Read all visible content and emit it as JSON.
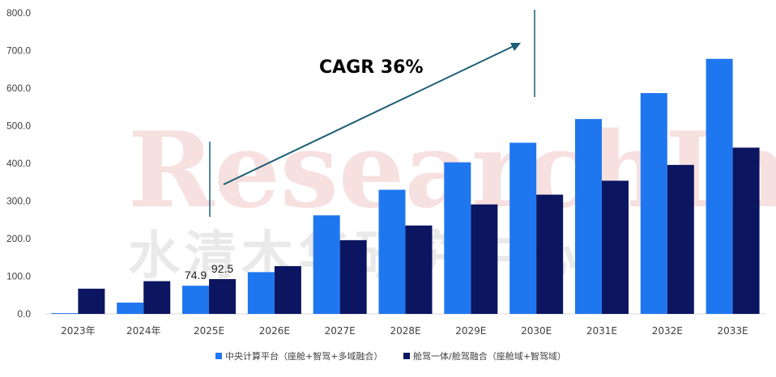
{
  "watermark": {
    "en": "ResearchInChina",
    "cn": "水清木华研究中心"
  },
  "colors": {
    "series1": "#1F77F0",
    "series2": "#0B1560",
    "arrow": "#1B5E75",
    "grid": "#f0f0f0"
  },
  "annotation": {
    "cagr_label": "CAGR 36%"
  },
  "chart_data": {
    "type": "bar",
    "categories": [
      "2023年",
      "2024年",
      "2025E",
      "2026E",
      "2027E",
      "2028E",
      "2029E",
      "2030E",
      "2031E",
      "2032E",
      "2033E"
    ],
    "series": [
      {
        "name": "中央计算平台（座舱+智驾+多域融合）",
        "values": [
          2,
          30,
          74.9,
          111,
          262,
          330,
          403,
          455,
          518,
          587,
          678
        ]
      },
      {
        "name": "舱驾一体/舱驾融合（座舱域+智驾域）",
        "values": [
          67,
          87,
          92.5,
          127,
          196,
          235,
          291,
          317,
          354,
          396,
          442
        ]
      }
    ],
    "data_labels": {
      "2025E": [
        "74.9",
        "92.5"
      ]
    },
    "ylim": [
      0,
      800
    ],
    "yticks": [
      "0.0",
      "100.0",
      "200.0",
      "300.0",
      "400.0",
      "500.0",
      "600.0",
      "700.0",
      "800.0"
    ],
    "title": "",
    "xlabel": "",
    "ylabel": "",
    "legend_position": "bottom",
    "grid": false
  }
}
